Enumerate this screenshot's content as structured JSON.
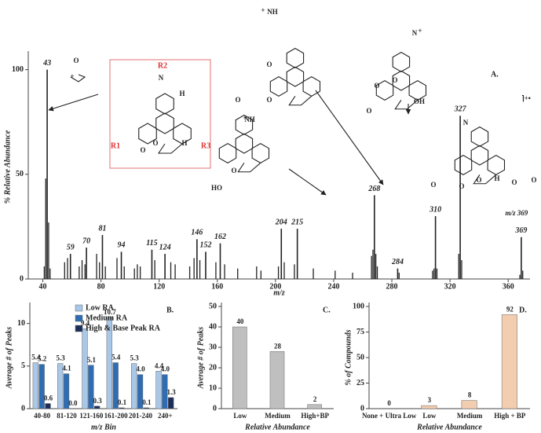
{
  "chart_data": [
    {
      "type": "stem",
      "panel_label": "A.",
      "y_label": "% Relative Abundance",
      "x_label": "m/z",
      "x": [
        43,
        59,
        70,
        81,
        94,
        115,
        124,
        146,
        152,
        162,
        204,
        215,
        268,
        284,
        310,
        327,
        369
      ],
      "values": [
        100,
        12,
        15,
        21,
        13,
        14,
        12,
        19,
        13,
        17,
        24,
        24,
        40,
        5,
        30,
        78,
        20
      ],
      "minor_x": [
        41,
        42,
        44,
        45,
        55,
        57,
        65,
        67,
        69,
        77,
        79,
        83,
        91,
        96,
        103,
        105,
        107,
        117,
        128,
        131,
        141,
        144,
        148,
        159,
        165,
        174,
        187,
        190,
        202,
        206,
        213,
        226,
        241,
        253,
        266,
        267,
        269,
        270,
        285,
        308,
        309,
        311,
        326,
        328,
        368,
        370
      ],
      "minor_values": [
        6,
        48,
        27,
        5,
        8,
        10,
        6,
        9,
        7,
        12,
        8,
        6,
        10,
        6,
        5,
        7,
        6,
        9,
        8,
        7,
        6,
        10,
        9,
        8,
        7,
        5,
        6,
        4,
        6,
        8,
        7,
        5,
        4,
        3,
        11,
        14,
        12,
        6,
        3,
        4,
        5,
        5,
        12,
        9,
        2,
        4
      ],
      "color": "#222222",
      "xlim": [
        30,
        375
      ],
      "ylim": [
        0,
        107
      ],
      "xticks": [
        40,
        80,
        120,
        160,
        200,
        240,
        280,
        320,
        360
      ],
      "yticks": [
        0,
        50,
        100
      ],
      "annotation": "m/z 369"
    },
    {
      "type": "bar",
      "panel_label": "B.",
      "y_label": "Average # of Peaks",
      "x_label": "m/z Bin",
      "categories": [
        "40-80",
        "81-120",
        "121-160",
        "161-200",
        "201-240",
        "240+"
      ],
      "series": [
        {
          "name": "Low RA",
          "color": "#a9c8e8",
          "values": [
            5.4,
            5.3,
            9.4,
            10.7,
            5.3,
            4.4
          ],
          "value_labels": [
            "5.4",
            "5.3",
            "9.4",
            "10.7",
            "5.3",
            "4.4"
          ]
        },
        {
          "name": "Medium RA",
          "color": "#2e6db4",
          "values": [
            5.2,
            4.1,
            5.1,
            5.4,
            4.0,
            4.0
          ],
          "value_labels": [
            "5.2",
            "4.1",
            "5.1",
            "5.4",
            "4.0",
            "4.0"
          ]
        },
        {
          "name": "High & Base Peak RA",
          "color": "#1a2e5a",
          "values": [
            0.6,
            0,
            0.3,
            0.1,
            0.1,
            1.3
          ],
          "value_labels": [
            "0.6",
            "0.0",
            "0.3",
            "0.1",
            "0.1",
            "1.3"
          ]
        }
      ],
      "ylim": [
        0,
        12
      ],
      "yticks": [
        0,
        5,
        10
      ],
      "legend": "top-left"
    },
    {
      "type": "bar",
      "panel_label": "C.",
      "y_label": "Average # of Peaks",
      "x_label": "Relative Abundance",
      "categories": [
        "Low",
        "Medium",
        "High+BP"
      ],
      "values": [
        40,
        28,
        2
      ],
      "color": "#bfbfbf",
      "ylim": [
        0,
        50
      ],
      "yticks": [
        0,
        10,
        20,
        30,
        40,
        50
      ]
    },
    {
      "type": "bar",
      "panel_label": "D.",
      "y_label": "% of Compounds",
      "x_label": "Relative Abundance",
      "categories": [
        "None + Ultra Low",
        "Low",
        "Medium",
        "High + BP"
      ],
      "values": [
        0,
        3,
        8,
        92
      ],
      "color": "#f3cdb0",
      "ylim": [
        0,
        100
      ],
      "yticks": [
        0,
        25,
        50,
        75,
        100
      ]
    }
  ],
  "structures": {
    "labels": [
      "O",
      "+",
      "R2",
      "N",
      "H",
      "R1",
      "O",
      "O",
      "R3",
      "H",
      "NH",
      "+",
      "HO",
      "O",
      "NH",
      "+",
      "O",
      "O",
      "O",
      "N",
      "+",
      "O",
      "O",
      "O",
      "OH",
      "⌉+•",
      "N",
      "O",
      "O",
      "O",
      "H",
      "O",
      "O"
    ]
  }
}
